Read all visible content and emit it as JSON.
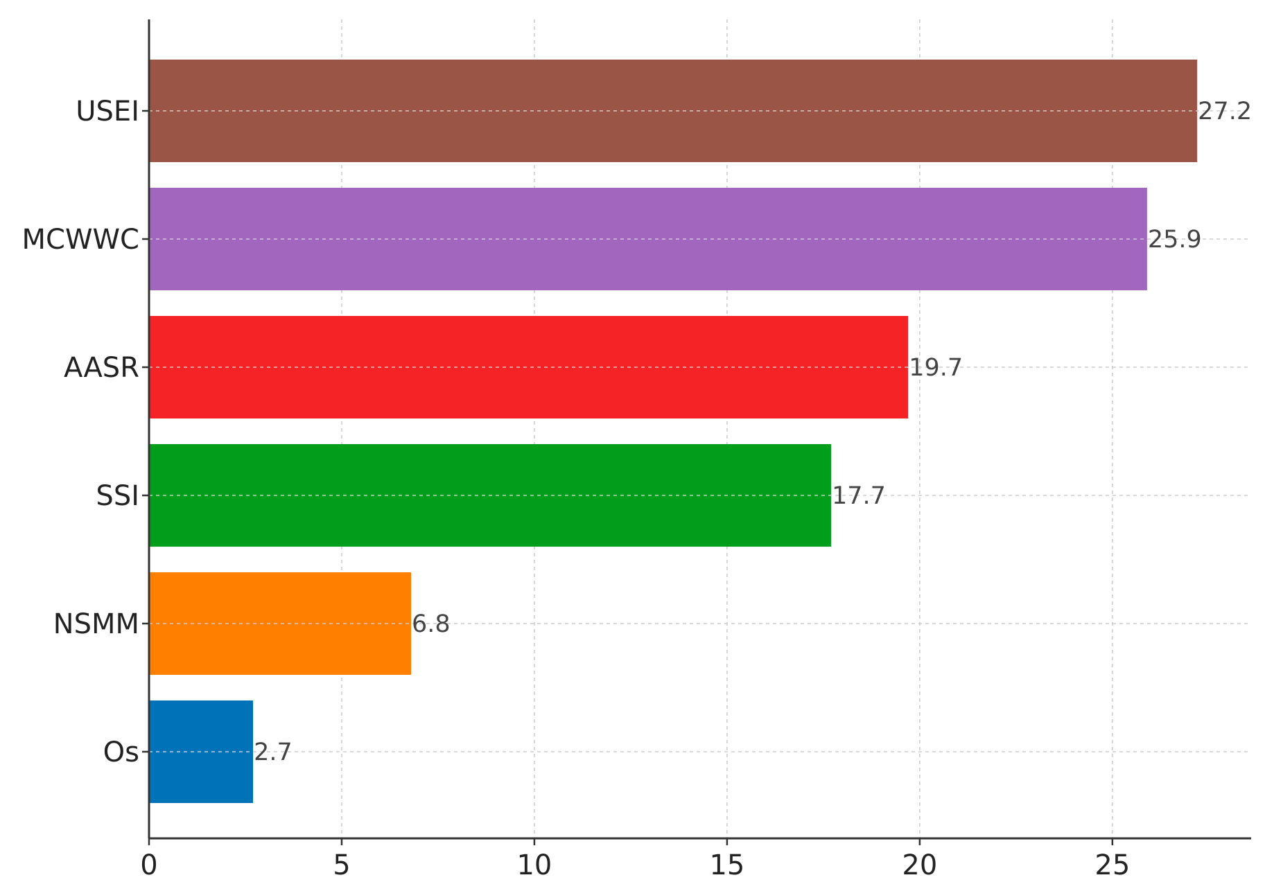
{
  "chart_data": {
    "type": "bar",
    "orientation": "horizontal",
    "title": "",
    "xlabel": "",
    "ylabel": "",
    "categories": [
      "Os",
      "NSMM",
      "SSI",
      "AASR",
      "MCWWC",
      "USEI"
    ],
    "values": [
      2.7,
      6.8,
      17.7,
      19.7,
      25.9,
      27.2
    ],
    "value_labels": [
      "2.7",
      "6.8",
      "17.7",
      "19.7",
      "25.9",
      "27.2"
    ],
    "colors": [
      "#0072b7",
      "#ff7f00",
      "#009e1a",
      "#f52226",
      "#a366bf",
      "#9a5547"
    ],
    "xlim": [
      0,
      28.6
    ],
    "xticks": [
      0,
      5,
      10,
      15,
      20,
      25
    ],
    "xtick_labels": [
      "0",
      "5",
      "10",
      "15",
      "20",
      "25"
    ],
    "grid": true,
    "legend": false
  }
}
